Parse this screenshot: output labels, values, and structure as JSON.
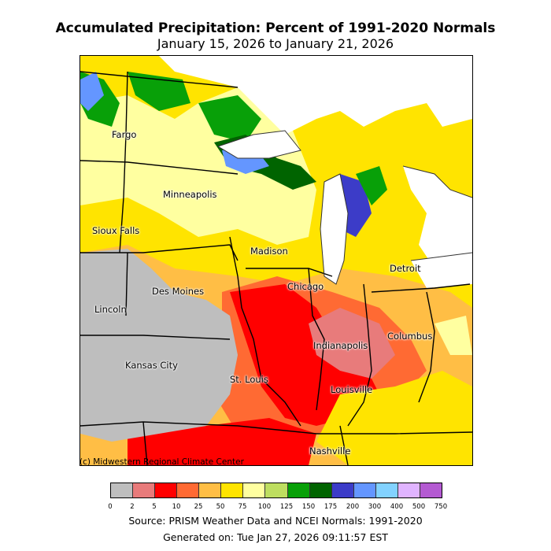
{
  "header": {
    "title": "Accumulated Precipitation: Percent of 1991-2020 Normals",
    "subtitle": "January 15, 2026 to January 21, 2026"
  },
  "map": {
    "credit": "(c) Midwestern Regional Climate Center",
    "cities": [
      "Fargo",
      "Minneapolis",
      "Sioux Falls",
      "Madison",
      "Detroit",
      "Chicago",
      "Des Moines",
      "Lincoln",
      "Columbus",
      "Indianapolis",
      "Kansas City",
      "St. Louis",
      "Louisville",
      "Nashville"
    ]
  },
  "legend": {
    "colors": [
      "#bebebe",
      "#e87b7b",
      "#ff0000",
      "#ff6a33",
      "#ffbe45",
      "#ffe400",
      "#ffffa0",
      "#bede60",
      "#08a008",
      "#006400",
      "#3c3cc8",
      "#6496ff",
      "#82d2ff",
      "#e0b4ff",
      "#b45ad2"
    ],
    "ticks": [
      "0",
      "2",
      "5",
      "10",
      "25",
      "50",
      "75",
      "100",
      "125",
      "150",
      "175",
      "200",
      "300",
      "400",
      "500",
      "750"
    ]
  },
  "footer": {
    "source": "Source: PRISM Weather Data and NCEI Normals: 1991-2020",
    "generated": "Generated on: Tue Jan 27, 2026 09:11:57 EST"
  }
}
